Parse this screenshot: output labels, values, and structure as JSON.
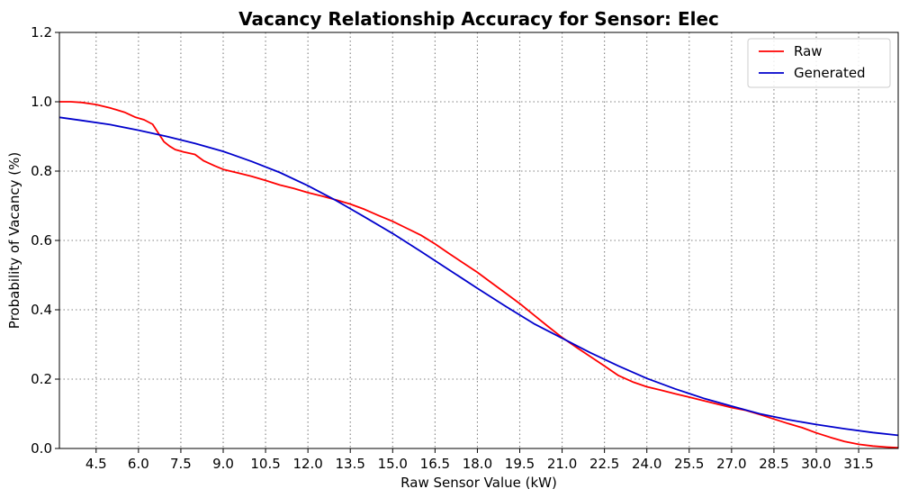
{
  "chart_data": {
    "type": "line",
    "title": "Vacancy Relationship Accuracy for Sensor: Elec",
    "xlabel": "Raw Sensor Value (kW)",
    "ylabel": "Probability of Vacancy (%)",
    "xlim": [
      3.2,
      32.9
    ],
    "ylim": [
      0.0,
      1.2
    ],
    "xticks": [
      4.5,
      6.0,
      7.5,
      9.0,
      10.5,
      12.0,
      13.5,
      15.0,
      16.5,
      18.0,
      19.5,
      21.0,
      22.5,
      24.0,
      25.5,
      27.0,
      28.5,
      30.0,
      31.5
    ],
    "xtick_labels": [
      "4.5",
      "6.0",
      "7.5",
      "9.0",
      "10.5",
      "12.0",
      "13.5",
      "15.0",
      "16.5",
      "18.0",
      "19.5",
      "21.0",
      "22.5",
      "24.0",
      "25.5",
      "27.0",
      "28.5",
      "30.0",
      "31.5"
    ],
    "yticks": [
      0.0,
      0.2,
      0.4,
      0.6,
      0.8,
      1.0,
      1.2
    ],
    "ytick_labels": [
      "0.0",
      "0.2",
      "0.4",
      "0.6",
      "0.8",
      "1.0",
      "1.2"
    ],
    "grid": true,
    "legend_position": "top-right",
    "series": [
      {
        "name": "Raw",
        "color": "#ff0000",
        "x": [
          3.2,
          3.6,
          4.0,
          4.5,
          5.0,
          5.5,
          5.9,
          6.2,
          6.5,
          6.7,
          6.9,
          7.1,
          7.3,
          7.6,
          8.0,
          8.3,
          8.7,
          9.0,
          9.5,
          10.0,
          10.5,
          11.0,
          11.5,
          12.0,
          12.5,
          13.0,
          13.5,
          14.0,
          14.5,
          15.0,
          15.5,
          16.0,
          16.5,
          17.0,
          17.5,
          18.0,
          18.5,
          19.0,
          19.5,
          20.0,
          20.5,
          21.0,
          21.5,
          22.0,
          22.5,
          23.0,
          23.5,
          24.0,
          24.5,
          25.0,
          25.5,
          26.0,
          26.5,
          27.0,
          27.5,
          28.0,
          28.5,
          29.0,
          29.5,
          30.0,
          30.5,
          31.0,
          31.5,
          32.0,
          32.5,
          32.9
        ],
        "y": [
          1.0,
          1.0,
          0.998,
          0.992,
          0.982,
          0.97,
          0.955,
          0.948,
          0.935,
          0.91,
          0.885,
          0.872,
          0.862,
          0.855,
          0.848,
          0.83,
          0.815,
          0.805,
          0.795,
          0.785,
          0.773,
          0.76,
          0.75,
          0.738,
          0.728,
          0.717,
          0.705,
          0.69,
          0.672,
          0.655,
          0.635,
          0.615,
          0.59,
          0.562,
          0.535,
          0.508,
          0.478,
          0.448,
          0.418,
          0.385,
          0.352,
          0.32,
          0.292,
          0.265,
          0.238,
          0.21,
          0.192,
          0.178,
          0.168,
          0.158,
          0.148,
          0.138,
          0.128,
          0.118,
          0.11,
          0.098,
          0.085,
          0.072,
          0.06,
          0.045,
          0.032,
          0.02,
          0.012,
          0.007,
          0.004,
          0.002
        ]
      },
      {
        "name": "Generated",
        "color": "#0000cc",
        "x": [
          3.2,
          4.0,
          5.0,
          6.0,
          7.0,
          8.0,
          9.0,
          10.0,
          11.0,
          12.0,
          13.0,
          14.0,
          15.0,
          16.0,
          17.0,
          18.0,
          19.0,
          20.0,
          21.0,
          22.0,
          23.0,
          24.0,
          25.0,
          26.0,
          27.0,
          28.0,
          29.0,
          30.0,
          31.0,
          32.0,
          32.9
        ],
        "y": [
          0.955,
          0.946,
          0.934,
          0.918,
          0.9,
          0.88,
          0.857,
          0.828,
          0.796,
          0.758,
          0.715,
          0.668,
          0.62,
          0.568,
          0.515,
          0.462,
          0.41,
          0.36,
          0.318,
          0.276,
          0.238,
          0.202,
          0.172,
          0.145,
          0.122,
          0.1,
          0.083,
          0.069,
          0.057,
          0.046,
          0.038
        ]
      }
    ]
  }
}
